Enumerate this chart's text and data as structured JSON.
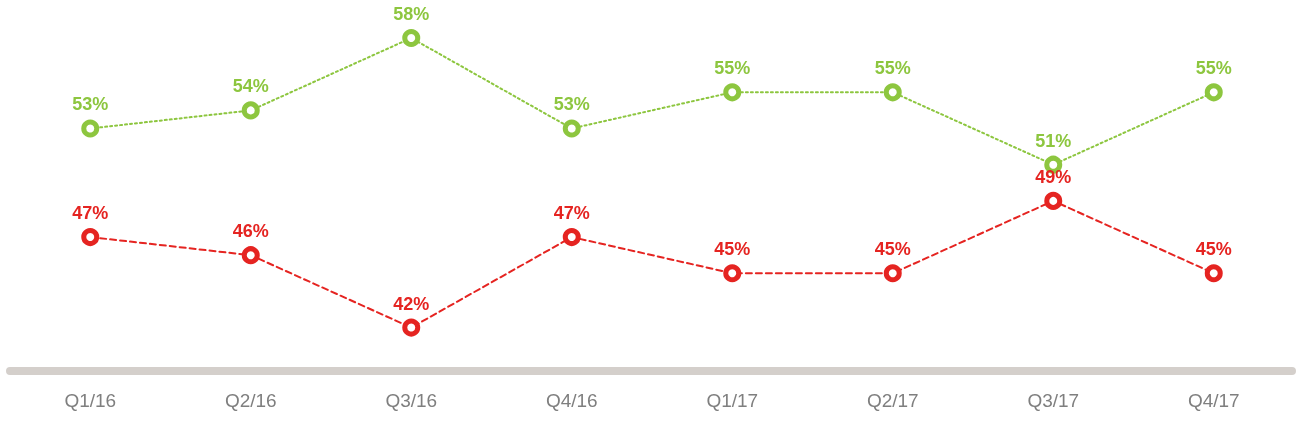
{
  "chart_data": {
    "type": "line",
    "categories": [
      "Q1/16",
      "Q2/16",
      "Q3/16",
      "Q4/16",
      "Q1/17",
      "Q2/17",
      "Q3/17",
      "Q4/17"
    ],
    "series": [
      {
        "color": "#8dc63f",
        "line_style": "dotted",
        "values": [
          53,
          54,
          58,
          53,
          55,
          55,
          51,
          55
        ],
        "value_labels": [
          "53%",
          "54%",
          "58%",
          "53%",
          "55%",
          "55%",
          "51%",
          "55%"
        ]
      },
      {
        "color": "#e52421",
        "line_style": "dashed",
        "values": [
          47,
          46,
          42,
          47,
          45,
          45,
          49,
          45
        ],
        "value_labels": [
          "47%",
          "46%",
          "42%",
          "47%",
          "45%",
          "45%",
          "49%",
          "45%"
        ]
      }
    ],
    "marker": "circle",
    "grid": false
  }
}
